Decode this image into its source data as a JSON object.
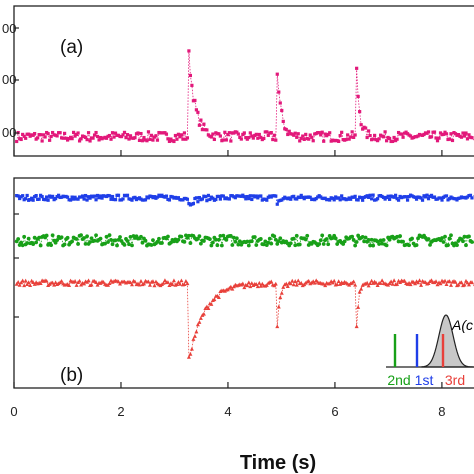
{
  "chart_data": [
    {
      "type": "scatter",
      "panel_label": "(a)",
      "xlim": [
        0,
        8.6
      ],
      "y_tick_labels": [
        "00",
        "00",
        "00"
      ],
      "series": [
        {
          "color": "#e2187a",
          "marker": "square",
          "baseline": 0,
          "noise": 0.05,
          "peaks": [
            {
              "t": 3.25,
              "height": 1.0,
              "decay": 0.12
            },
            {
              "t": 4.9,
              "height": 0.85,
              "decay": 0.08
            },
            {
              "t": 6.4,
              "height": 0.75,
              "decay": 0.06
            }
          ]
        }
      ],
      "ylim": [
        -0.2,
        1.35
      ]
    },
    {
      "type": "scatter",
      "panel_label": "(b)",
      "xlabel": "Time (s)",
      "xlim": [
        0,
        8.6
      ],
      "x_ticks": [
        0,
        2,
        4,
        6,
        8
      ],
      "ylim": [
        -1.9,
        1.3
      ],
      "series": [
        {
          "color": "#1f3ee8",
          "marker": "square",
          "baseline": 1.0,
          "noise": 0.04,
          "peaks": [
            {
              "t": 3.25,
              "height": -0.12,
              "decay": 0.12
            },
            {
              "t": 4.9,
              "height": -0.1,
              "decay": 0.08
            },
            {
              "t": 6.4,
              "height": -0.06,
              "decay": 0.06
            }
          ]
        },
        {
          "color": "#18a018",
          "marker": "circle",
          "baseline": 0.35,
          "noise": 0.08,
          "peaks": []
        },
        {
          "color": "#e8403a",
          "marker": "triangle",
          "baseline": -0.3,
          "noise": 0.04,
          "peaks": [
            {
              "t": 3.25,
              "height": -1.25,
              "decay": 0.3
            },
            {
              "t": 4.9,
              "height": -0.9,
              "decay": 0.06
            },
            {
              "t": 6.4,
              "height": -0.8,
              "decay": 0.04
            }
          ]
        }
      ],
      "inset": {
        "label": "A(c",
        "order_labels": [
          {
            "text": "2nd",
            "color": "#18a018"
          },
          {
            "text": "1st",
            "color": "#1f3ee8"
          },
          {
            "text": "3rd",
            "color": "#e8403a"
          }
        ],
        "fill_color": "#c8c8c8"
      }
    }
  ]
}
